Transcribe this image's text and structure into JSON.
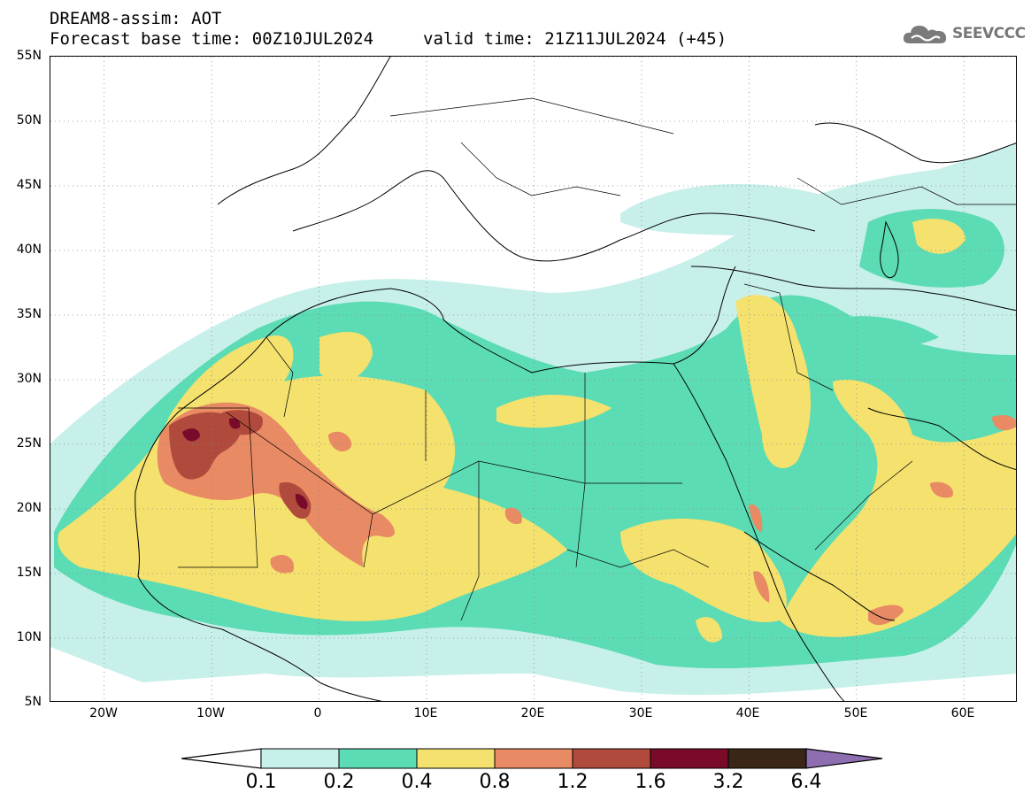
{
  "header": {
    "title": "DREAM8-assim: AOT",
    "base_time": "Forecast base time: 00Z10JUL2024",
    "valid_time": "valid time: 21Z11JUL2024 (+45)"
  },
  "logo": {
    "text": "SEEVCCC",
    "icon": "cloud-icon",
    "color": "#777777"
  },
  "map": {
    "lon_range": [
      -25,
      65
    ],
    "lat_range": [
      5,
      55
    ],
    "lat_labels": [
      "5N",
      "10N",
      "15N",
      "20N",
      "25N",
      "30N",
      "35N",
      "40N",
      "45N",
      "50N",
      "55N"
    ],
    "lat_values": [
      5,
      10,
      15,
      20,
      25,
      30,
      35,
      40,
      45,
      50,
      55
    ],
    "lon_labels": [
      "20W",
      "10W",
      "0",
      "10E",
      "20E",
      "30E",
      "40E",
      "50E",
      "60E"
    ],
    "lon_values": [
      -20,
      -10,
      0,
      10,
      20,
      30,
      40,
      50,
      60
    ],
    "gridlines": "dotted"
  },
  "colorbar": {
    "levels": [
      "0.1",
      "0.2",
      "0.4",
      "0.8",
      "1.2",
      "1.6",
      "3.2",
      "6.4"
    ],
    "colors": [
      "#c8f0ea",
      "#5cdcb4",
      "#f5e16e",
      "#e88a64",
      "#b04a3c",
      "#7a0a2a",
      "#3a2616",
      "#8e6eb0"
    ],
    "under_color": "#ffffff"
  },
  "legend_colors": {
    "c01": "#c8f0ea",
    "c02": "#5cdcb4",
    "c04": "#f5e16e",
    "c08": "#e88a64",
    "c12": "#b04a3c",
    "c16": "#7a0a2a",
    "c32": "#3a2616",
    "c64": "#8e6eb0"
  }
}
